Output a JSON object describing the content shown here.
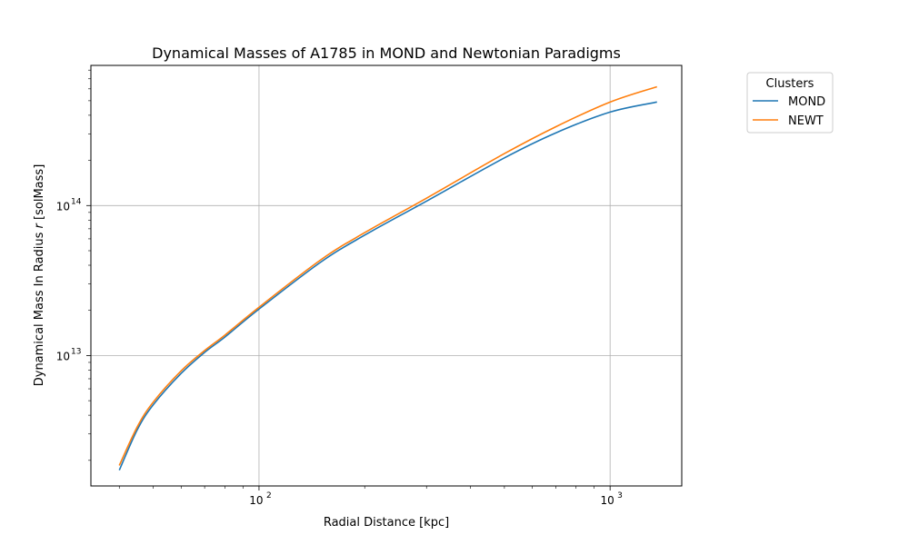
{
  "chart_data": {
    "type": "line",
    "title": "Dynamical Masses of A1785 in MOND and Newtonian Paradigms",
    "xlabel": "Radial Distance [kpc]",
    "ylabel_prefix": "Dynamical Mass In Radius ",
    "ylabel_var": "r",
    "ylabel_suffix": " [solMass]",
    "x_scale": "log",
    "y_scale": "log",
    "xlim": [
      33.2,
      1600
    ],
    "ylim": [
      1350000000000.0,
      860000000000000.0
    ],
    "grid": true,
    "legend": {
      "title": "Clusters",
      "placement": "outside right"
    },
    "x_ticks": [
      {
        "base": "10",
        "exp": "2",
        "value": 100
      },
      {
        "base": "10",
        "exp": "3",
        "value": 1000
      }
    ],
    "y_ticks": [
      {
        "base": "10",
        "exp": "13",
        "value": 10000000000000.0
      },
      {
        "base": "10",
        "exp": "14",
        "value": 100000000000000.0
      }
    ],
    "series": [
      {
        "name": "MOND",
        "color": "#1f77b4",
        "x": [
          40,
          45,
          50,
          60,
          70,
          80,
          100,
          150,
          200,
          300,
          500,
          700,
          1000,
          1360
        ],
        "y": [
          1720000000000.0,
          3200000000000.0,
          4700000000000.0,
          7600000000000.0,
          10500000000000.0,
          13300000000000.0,
          20400000000000.0,
          42000000000000.0,
          63500000000000.0,
          107000000000000.0,
          208000000000000.0,
          305000000000000.0,
          420000000000000.0,
          490000000000000.0
        ]
      },
      {
        "name": "NEWT",
        "color": "#ff7f0e",
        "x": [
          40,
          45,
          50,
          60,
          70,
          80,
          100,
          150,
          200,
          300,
          500,
          700,
          1000,
          1360
        ],
        "y": [
          1850000000000.0,
          3350000000000.0,
          4900000000000.0,
          7900000000000.0,
          10800000000000.0,
          13700000000000.0,
          21000000000000.0,
          43500000000000.0,
          66000000000000.0,
          112000000000000.0,
          222000000000000.0,
          335000000000000.0,
          490000000000000.0,
          620000000000000.0
        ]
      }
    ]
  }
}
